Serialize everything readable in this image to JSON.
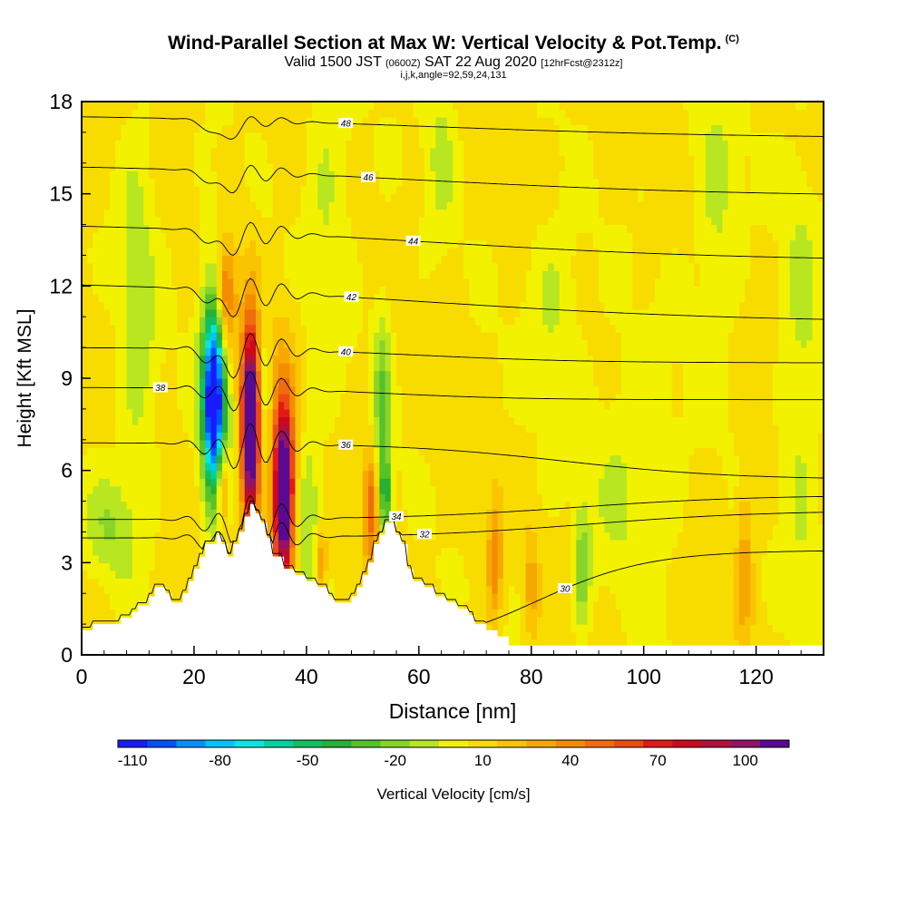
{
  "title": {
    "main": "Wind-Parallel Section at Max W: Vertical Velocity & Pot.Temp.",
    "copyright": "(C)",
    "valid_prefix": "Valid 1500 JST",
    "valid_utc": "(0600Z)",
    "valid_date": "SAT 22 Aug 2020",
    "forecast": "[12hrFcst@2312z]",
    "params": "i,j,k,angle=92,59,24,131"
  },
  "colors": {
    "background": "#ffffff",
    "terrain": "#ffffff",
    "contour": "#000000",
    "axis": "#000000"
  },
  "chart_data": {
    "type": "heatmap",
    "xlabel": "Distance [nm]",
    "ylabel": "Height [Kft MSL]",
    "xlim": [
      0,
      132
    ],
    "ylim": [
      0,
      18
    ],
    "x_ticks": [
      0,
      20,
      40,
      60,
      80,
      100,
      120
    ],
    "y_ticks": [
      0,
      3,
      6,
      9,
      12,
      15,
      18
    ],
    "grid": false,
    "colorbar": {
      "label": "Vertical Velocity [cm/s]",
      "min": -115,
      "max": 125,
      "step": 10,
      "tick_labels": [
        "-110",
        "-80",
        "-50",
        "-20",
        "10",
        "40",
        "70",
        "100"
      ],
      "tick_values": [
        -110,
        -80,
        -50,
        -20,
        10,
        40,
        70,
        100
      ],
      "colors": [
        "#1a1aff",
        "#0050ff",
        "#0090ff",
        "#00c4ff",
        "#00e8e0",
        "#00d2a0",
        "#10c060",
        "#26b035",
        "#55c22a",
        "#88d42a",
        "#b8e620",
        "#f2f200",
        "#f8dc00",
        "#fac400",
        "#f6a800",
        "#f48c00",
        "#f06c10",
        "#ec4a14",
        "#e41818",
        "#cc0820",
        "#b0103c",
        "#901468",
        "#5a0a90"
      ]
    },
    "terrain": [
      [
        0,
        0.8
      ],
      [
        2,
        0.8
      ],
      [
        2,
        1.0
      ],
      [
        7,
        1.0
      ],
      [
        7,
        1.2
      ],
      [
        9,
        1.2
      ],
      [
        9,
        1.4
      ],
      [
        10,
        1.4
      ],
      [
        10,
        1.6
      ],
      [
        12,
        1.6
      ],
      [
        12,
        1.9
      ],
      [
        13,
        1.9
      ],
      [
        13,
        2.2
      ],
      [
        15,
        2.2
      ],
      [
        15,
        2.0
      ],
      [
        16,
        2.0
      ],
      [
        16,
        1.7
      ],
      [
        18,
        1.7
      ],
      [
        18,
        2.0
      ],
      [
        19,
        2.0
      ],
      [
        19,
        2.4
      ],
      [
        20,
        2.4
      ],
      [
        20,
        2.8
      ],
      [
        21,
        2.8
      ],
      [
        21,
        3.2
      ],
      [
        22,
        3.2
      ],
      [
        22,
        3.6
      ],
      [
        24,
        3.6
      ],
      [
        24,
        3.9
      ],
      [
        25,
        3.9
      ],
      [
        25,
        3.6
      ],
      [
        26,
        3.6
      ],
      [
        26,
        3.2
      ],
      [
        27,
        3.2
      ],
      [
        27,
        3.6
      ],
      [
        28,
        3.6
      ],
      [
        28,
        4.0
      ],
      [
        29,
        4.0
      ],
      [
        29,
        4.5
      ],
      [
        30,
        4.5
      ],
      [
        30,
        4.9
      ],
      [
        31,
        4.9
      ],
      [
        31,
        4.6
      ],
      [
        32,
        4.6
      ],
      [
        32,
        4.3
      ],
      [
        33,
        4.3
      ],
      [
        33,
        3.8
      ],
      [
        34,
        3.8
      ],
      [
        34,
        3.2
      ],
      [
        36,
        3.2
      ],
      [
        36,
        2.8
      ],
      [
        38,
        2.8
      ],
      [
        38,
        2.6
      ],
      [
        40,
        2.6
      ],
      [
        40,
        2.4
      ],
      [
        42,
        2.4
      ],
      [
        42,
        2.2
      ],
      [
        44,
        2.2
      ],
      [
        44,
        1.9
      ],
      [
        45,
        1.9
      ],
      [
        45,
        1.7
      ],
      [
        48,
        1.7
      ],
      [
        48,
        1.9
      ],
      [
        49,
        1.9
      ],
      [
        49,
        2.2
      ],
      [
        50,
        2.2
      ],
      [
        50,
        2.6
      ],
      [
        51,
        2.6
      ],
      [
        51,
        3.0
      ],
      [
        52,
        3.0
      ],
      [
        52,
        3.6
      ],
      [
        53,
        3.6
      ],
      [
        53,
        3.9
      ],
      [
        54,
        3.9
      ],
      [
        54,
        4.3
      ],
      [
        56,
        4.3
      ],
      [
        56,
        3.9
      ],
      [
        57,
        3.9
      ],
      [
        57,
        3.6
      ],
      [
        58,
        3.6
      ],
      [
        58,
        2.8
      ],
      [
        59,
        2.8
      ],
      [
        59,
        2.4
      ],
      [
        61,
        2.4
      ],
      [
        61,
        2.2
      ],
      [
        63,
        2.2
      ],
      [
        63,
        1.9
      ],
      [
        65,
        1.9
      ],
      [
        65,
        1.7
      ],
      [
        67,
        1.7
      ],
      [
        67,
        1.5
      ],
      [
        69,
        1.5
      ],
      [
        69,
        1.3
      ],
      [
        70,
        1.3
      ],
      [
        70,
        1.0
      ],
      [
        72,
        1.0
      ],
      [
        72,
        0.8
      ],
      [
        74,
        0.8
      ],
      [
        74,
        0.6
      ],
      [
        76,
        0.6
      ],
      [
        76,
        0.3
      ],
      [
        132,
        0.3
      ]
    ],
    "cells": [
      {
        "name": "downdraft-core",
        "x": 23.5,
        "y": 8.3,
        "sx": 1.2,
        "sy": 1.9,
        "w": -115
      },
      {
        "name": "downdraft-outer",
        "x": 23.8,
        "y": 8.8,
        "sx": 2.0,
        "sy": 3.2,
        "w": -40
      },
      {
        "name": "updraft-west",
        "x": 25.5,
        "y": 11.6,
        "sx": 1.3,
        "sy": 1.3,
        "w": 55
      },
      {
        "name": "updraft-west-low",
        "x": 25.0,
        "y": 5.5,
        "sx": 0.8,
        "sy": 1.0,
        "w": 50
      },
      {
        "name": "updraft-core-1",
        "x": 30.0,
        "y": 7.6,
        "sx": 1.0,
        "sy": 2.0,
        "w": 125
      },
      {
        "name": "updraft-core-1-halo",
        "x": 30.5,
        "y": 7.0,
        "sx": 2.0,
        "sy": 3.5,
        "w": 25
      },
      {
        "name": "downdraft-between",
        "x": 32.6,
        "y": 8.0,
        "sx": 0.9,
        "sy": 2.5,
        "w": -30
      },
      {
        "name": "updraft-core-2",
        "x": 36.0,
        "y": 5.2,
        "sx": 1.1,
        "sy": 1.8,
        "w": 115
      },
      {
        "name": "updraft-core-2-halo",
        "x": 36.0,
        "y": 5.5,
        "sx": 2.2,
        "sy": 3.2,
        "w": 35
      },
      {
        "name": "downdraft-valley",
        "x": 40.0,
        "y": 4.5,
        "sx": 2.0,
        "sy": 2.5,
        "w": -28
      },
      {
        "name": "updraft-mid",
        "x": 42.5,
        "y": 3.0,
        "sx": 0.8,
        "sy": 0.8,
        "w": 35
      },
      {
        "name": "updraft-ridge-2",
        "x": 51.5,
        "y": 4.8,
        "sx": 1.0,
        "sy": 1.4,
        "w": 45
      },
      {
        "name": "downdraft-ridge-2",
        "x": 53.5,
        "y": 8.2,
        "sx": 1.2,
        "sy": 2.5,
        "w": -30
      },
      {
        "name": "downdraft-ridge-2-low",
        "x": 54.0,
        "y": 5.2,
        "sx": 0.8,
        "sy": 0.9,
        "w": -45
      },
      {
        "name": "updraft-lee",
        "x": 73.5,
        "y": 3.0,
        "sx": 0.9,
        "sy": 1.4,
        "w": 35
      },
      {
        "name": "updraft-lee-2",
        "x": 80.0,
        "y": 2.2,
        "sx": 0.8,
        "sy": 1.1,
        "w": 22
      },
      {
        "name": "downdraft-lee",
        "x": 89.0,
        "y": 2.8,
        "sx": 1.0,
        "sy": 1.5,
        "w": -28
      },
      {
        "name": "updraft-far-east",
        "x": 118.0,
        "y": 3.2,
        "sx": 1.0,
        "sy": 2.0,
        "w": 22
      },
      {
        "name": "downdraft-band-a",
        "x": 10.0,
        "y": 11.0,
        "sx": 2.5,
        "sy": 5.0,
        "w": -18
      },
      {
        "name": "downdraft-band-b",
        "x": 44.0,
        "y": 15.0,
        "sx": 3.0,
        "sy": 4.0,
        "w": -14
      },
      {
        "name": "downdraft-band-c",
        "x": 64.0,
        "y": 16.5,
        "sx": 2.0,
        "sy": 2.0,
        "w": -16
      },
      {
        "name": "downdraft-band-d",
        "x": 84.0,
        "y": 11.5,
        "sx": 3.5,
        "sy": 2.0,
        "w": -15
      },
      {
        "name": "downdraft-band-e",
        "x": 98.0,
        "y": 6.0,
        "sx": 6.0,
        "sy": 3.0,
        "w": -14
      },
      {
        "name": "downdraft-band-f",
        "x": 113.0,
        "y": 14.5,
        "sx": 3.0,
        "sy": 3.0,
        "w": -16
      },
      {
        "name": "downdraft-band-g",
        "x": 128.0,
        "y": 9.0,
        "sx": 2.5,
        "sy": 6.0,
        "w": -15
      },
      {
        "name": "downdraft-band-h",
        "x": 5.0,
        "y": 4.2,
        "sx": 3.0,
        "sy": 1.2,
        "w": -20
      }
    ],
    "isentropes": [
      {
        "label": "30",
        "y0": 0.1,
        "y1": 3.4,
        "flat": 3.1,
        "c": 81,
        "w": 10,
        "a": 0,
        "label_x": 86
      },
      {
        "label": "32",
        "y0": 3.8,
        "y1": 4.7,
        "flat": 4.5,
        "c": 90,
        "w": 16,
        "a": 0.8,
        "label_x": 61
      },
      {
        "label": "34",
        "y0": 4.4,
        "y1": 5.2,
        "flat": 5.5,
        "c": 88,
        "w": 16,
        "a": 0.8,
        "label_x": 56
      },
      {
        "label": "36",
        "y0": 6.9,
        "y1": 5.7,
        "flat": 6.6,
        "c": 86,
        "w": 15,
        "a": 0.7,
        "label_x": 47
      },
      {
        "label": "38",
        "y0": 8.7,
        "y1": 8.3,
        "flat": 8.3,
        "c": 55,
        "w": 12,
        "a": 0.6,
        "label_x": 14
      },
      {
        "label": "40",
        "y0": 10.0,
        "y1": 9.5,
        "flat": 10.0,
        "c": 60,
        "w": 15,
        "a": 0.6,
        "label_x": 47
      },
      {
        "label": "42",
        "y0": 12.2,
        "y1": 10.8,
        "flat": 12.4,
        "c": 60,
        "w": 30,
        "a": 0.5,
        "label_x": 48
      },
      {
        "label": "44",
        "y0": 14.1,
        "y1": 12.8,
        "flat": 13.9,
        "c": 60,
        "w": 30,
        "a": 0.4,
        "label_x": 59
      },
      {
        "label": "46",
        "y0": 16.0,
        "y1": 14.9,
        "flat": 15.6,
        "c": 60,
        "w": 30,
        "a": 0.3,
        "label_x": 51
      },
      {
        "label": "48",
        "y0": 17.6,
        "y1": 16.8,
        "flat": 17.3,
        "c": 60,
        "w": 30,
        "a": 0.2,
        "label_x": 47
      }
    ]
  }
}
